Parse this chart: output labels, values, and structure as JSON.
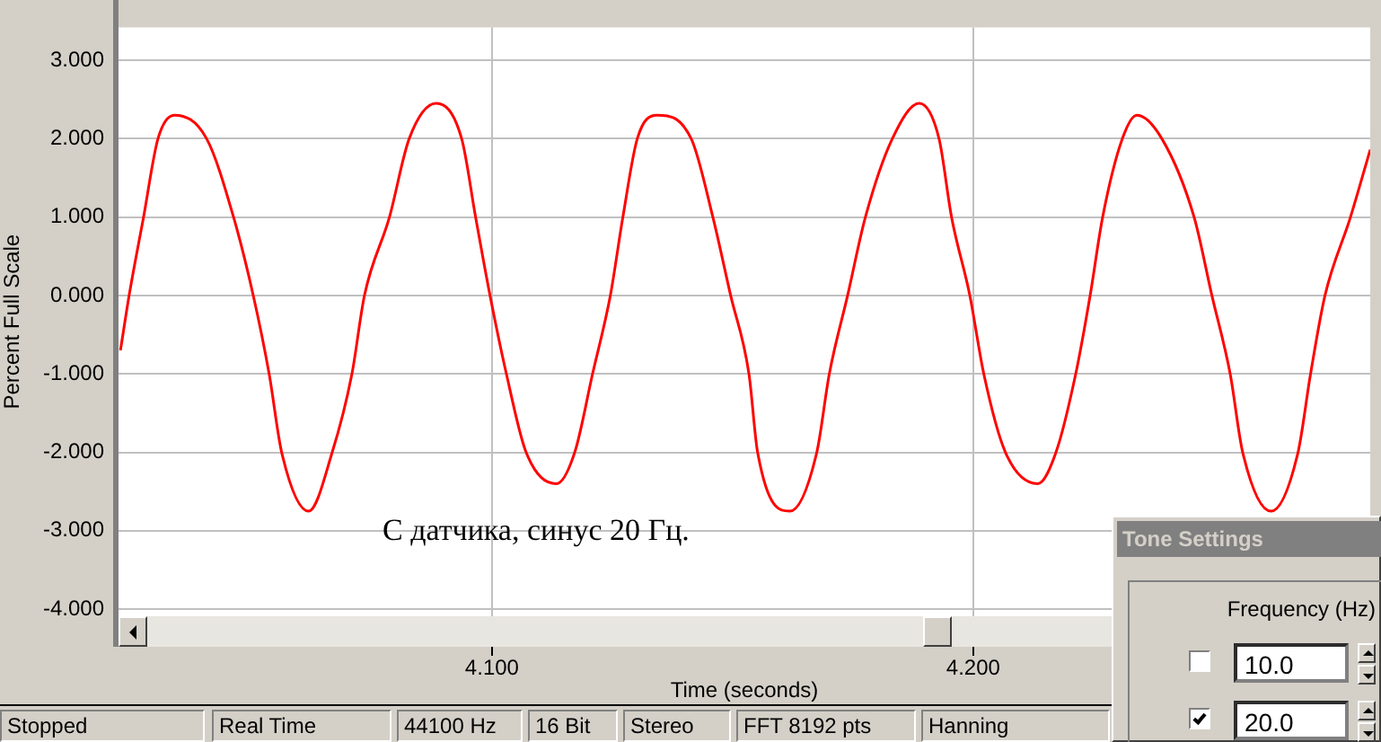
{
  "chart_data": {
    "type": "line",
    "xlabel": "Time (seconds)",
    "ylabel": "Percent Full Scale",
    "annotations": [
      "С датчика, синус 20 Гц.",
      "Stopped",
      "Real Time",
      "44100 Hz",
      "16 Bit",
      "Stereo",
      "FFT 8192 pts",
      "Hanning",
      "Tone Settings",
      "Frequency (Hz)",
      "10.0",
      "20.0"
    ],
    "xlim": [
      4.0224,
      4.2825
    ],
    "xticks": [
      {
        "value": 4.1,
        "label": "4.100"
      },
      {
        "value": 4.2,
        "label": "4.200"
      }
    ],
    "ylim": [
      -4.09,
      3.42
    ],
    "yticks": [
      {
        "value": -4,
        "label": "-4.000"
      },
      {
        "value": -3,
        "label": "-3.000"
      },
      {
        "value": -2,
        "label": "-2.000"
      },
      {
        "value": -1,
        "label": "-1.000"
      },
      {
        "value": 0,
        "label": "0.000"
      },
      {
        "value": 1,
        "label": "1.000"
      },
      {
        "value": 2,
        "label": "2.000"
      },
      {
        "value": 3,
        "label": "3.000"
      }
    ],
    "grid": true,
    "legend": false,
    "marker": "none",
    "line_style": "solid",
    "series": [
      {
        "color": "#ff0000",
        "x": [
          4.0228,
          4.0246,
          4.0276,
          4.0306,
          4.034,
          4.0407,
          4.0463,
          4.0504,
          4.0537,
          4.0563,
          4.0619,
          4.0668,
          4.0709,
          4.0735,
          4.0787,
          4.0828,
          4.0884,
          4.0937,
          4.0966,
          4.0996,
          4.103,
          4.1071,
          4.1134,
          4.1172,
          4.1209,
          4.1246,
          4.1272,
          4.1302,
          4.1343,
          4.1414,
          4.1459,
          4.1496,
          4.1534,
          4.1552,
          4.1619,
          4.1675,
          4.1701,
          4.1739,
          4.1776,
          4.1832,
          4.1888,
          4.1929,
          4.1955,
          4.1993,
          4.2022,
          4.2067,
          4.2134,
          4.2172,
          4.2213,
          4.2243,
          4.2269,
          4.231,
          4.234,
          4.2392,
          4.2459,
          4.2496,
          4.2534,
          4.256,
          4.2619,
          4.2675,
          4.2701,
          4.2731,
          4.2784,
          4.2825
        ],
        "values": [
          -0.7,
          0,
          1,
          2,
          2.3,
          2,
          1,
          0,
          -1,
          -2,
          -2.75,
          -2,
          -1,
          0,
          1,
          2,
          2.45,
          2,
          1,
          0,
          -1,
          -2,
          -2.4,
          -2,
          -1,
          0,
          1,
          2,
          2.3,
          2,
          1,
          0,
          -1,
          -2,
          -2.75,
          -2,
          -1,
          0,
          1,
          2,
          2.45,
          2,
          1,
          0,
          -1,
          -2,
          -2.4,
          -2,
          -1,
          0,
          1,
          2,
          2.3,
          2,
          1,
          0,
          -1,
          -2,
          -2.75,
          -2,
          -1,
          0,
          1,
          1.86
        ]
      }
    ]
  }
}
